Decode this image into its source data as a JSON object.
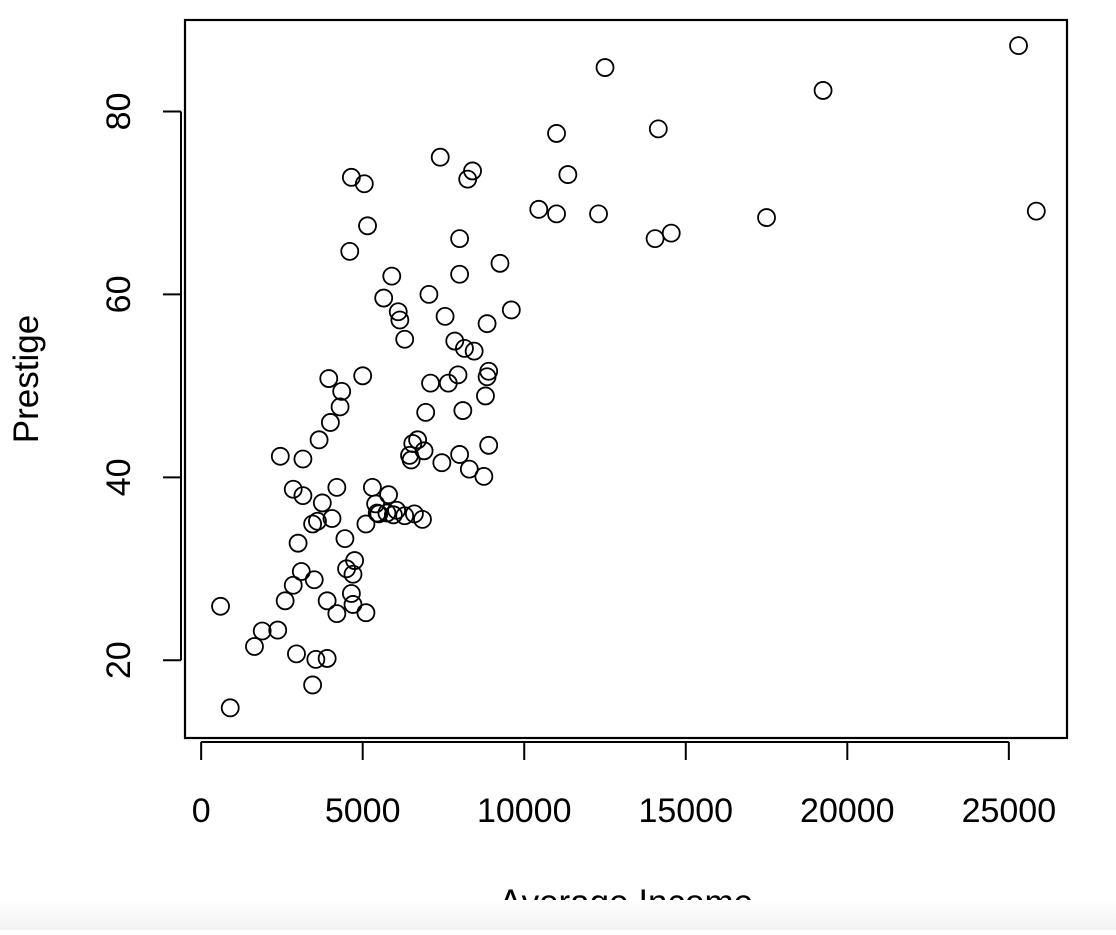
{
  "chart_data": {
    "type": "scatter",
    "title": "",
    "xlabel": "Average Income",
    "ylabel": "Prestige",
    "xlim": [
      -500,
      26800
    ],
    "ylim": [
      11.5,
      90
    ],
    "x_ticks": [
      0,
      5000,
      10000,
      15000,
      20000,
      25000
    ],
    "y_ticks": [
      20,
      40,
      60,
      80
    ],
    "marker": "open-circle",
    "grid": false,
    "legend": "none",
    "points": [
      [
        600,
        25.9
      ],
      [
        900,
        14.8
      ],
      [
        1650,
        21.5
      ],
      [
        1890,
        23.2
      ],
      [
        2370,
        23.3
      ],
      [
        2450,
        42.3
      ],
      [
        2600,
        26.5
      ],
      [
        2850,
        38.7
      ],
      [
        2850,
        28.2
      ],
      [
        2950,
        20.7
      ],
      [
        3000,
        32.8
      ],
      [
        3100,
        29.7
      ],
      [
        3150,
        42.0
      ],
      [
        3150,
        38.0
      ],
      [
        3450,
        17.3
      ],
      [
        3450,
        34.9
      ],
      [
        3500,
        28.8
      ],
      [
        3550,
        20.1
      ],
      [
        3600,
        35.2
      ],
      [
        3650,
        44.1
      ],
      [
        3750,
        37.2
      ],
      [
        3900,
        26.5
      ],
      [
        3900,
        20.2
      ],
      [
        3950,
        50.8
      ],
      [
        4000,
        46.0
      ],
      [
        4050,
        35.5
      ],
      [
        4200,
        38.9
      ],
      [
        4200,
        25.1
      ],
      [
        4300,
        47.7
      ],
      [
        4350,
        49.4
      ],
      [
        4450,
        33.3
      ],
      [
        4500,
        30.0
      ],
      [
        4600,
        64.7
      ],
      [
        4650,
        72.8
      ],
      [
        4650,
        27.3
      ],
      [
        4700,
        29.4
      ],
      [
        4700,
        26.1
      ],
      [
        4750,
        30.9
      ],
      [
        5000,
        51.1
      ],
      [
        5050,
        72.1
      ],
      [
        5100,
        34.9
      ],
      [
        5100,
        25.2
      ],
      [
        5150,
        67.5
      ],
      [
        5300,
        38.9
      ],
      [
        5400,
        37.1
      ],
      [
        5450,
        36.1
      ],
      [
        5500,
        36.0
      ],
      [
        5650,
        59.6
      ],
      [
        5750,
        36.1
      ],
      [
        5800,
        38.1
      ],
      [
        5900,
        62.0
      ],
      [
        5950,
        35.9
      ],
      [
        6050,
        36.4
      ],
      [
        6100,
        58.1
      ],
      [
        6150,
        57.2
      ],
      [
        6300,
        55.1
      ],
      [
        6300,
        35.8
      ],
      [
        6450,
        42.4
      ],
      [
        6500,
        41.9
      ],
      [
        6550,
        43.7
      ],
      [
        6600,
        36.0
      ],
      [
        6700,
        44.1
      ],
      [
        6850,
        35.4
      ],
      [
        6900,
        42.9
      ],
      [
        6950,
        47.1
      ],
      [
        7050,
        60.0
      ],
      [
        7100,
        50.3
      ],
      [
        7400,
        75.0
      ],
      [
        7450,
        41.6
      ],
      [
        7550,
        57.6
      ],
      [
        7650,
        50.3
      ],
      [
        7850,
        54.9
      ],
      [
        7950,
        51.2
      ],
      [
        8000,
        66.1
      ],
      [
        8000,
        62.2
      ],
      [
        8000,
        42.5
      ],
      [
        8100,
        47.3
      ],
      [
        8150,
        54.1
      ],
      [
        8250,
        72.6
      ],
      [
        8300,
        40.9
      ],
      [
        8400,
        73.5
      ],
      [
        8450,
        53.8
      ],
      [
        8750,
        40.1
      ],
      [
        8800,
        48.9
      ],
      [
        8850,
        56.8
      ],
      [
        8850,
        51.0
      ],
      [
        8900,
        51.6
      ],
      [
        8900,
        43.5
      ],
      [
        9250,
        63.4
      ],
      [
        9600,
        58.3
      ],
      [
        10450,
        69.3
      ],
      [
        11000,
        77.6
      ],
      [
        11000,
        68.8
      ],
      [
        11350,
        73.1
      ],
      [
        12300,
        68.8
      ],
      [
        12500,
        84.8
      ],
      [
        14050,
        66.1
      ],
      [
        14150,
        78.1
      ],
      [
        14550,
        66.7
      ],
      [
        17500,
        68.4
      ],
      [
        19250,
        82.3
      ],
      [
        25300,
        87.2
      ],
      [
        25850,
        69.1
      ]
    ]
  }
}
